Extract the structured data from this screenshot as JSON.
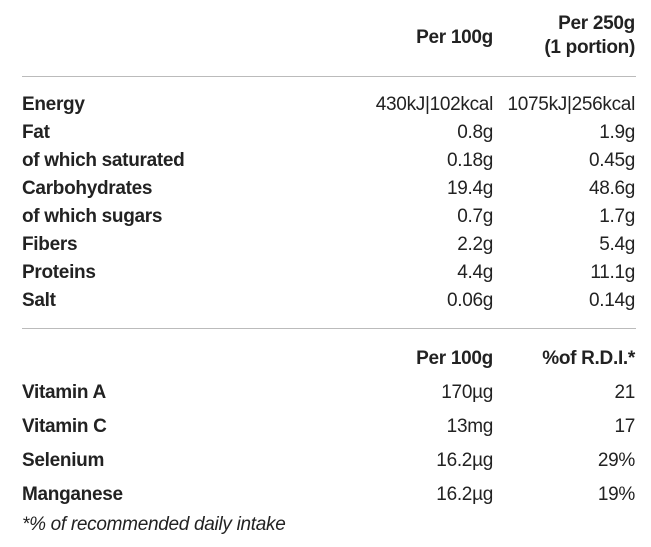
{
  "nutrition": {
    "header": {
      "per_100g": "Per 100g",
      "per_portion": [
        "Per 250g",
        "(1 portion)"
      ]
    },
    "rows": [
      [
        "Energy",
        "430kJ|102kcal",
        "1075kJ|256kcal"
      ],
      [
        "Fat",
        "0.8g",
        "1.9g"
      ],
      [
        "of which saturated",
        "0.18g",
        "0.45g"
      ],
      [
        "Carbohydrates",
        "19.4g",
        "48.6g"
      ],
      [
        "of which sugars",
        "0.7g",
        "1.7g"
      ],
      [
        "Fibers",
        "2.2g",
        "5.4g"
      ],
      [
        "Proteins",
        "4.4g",
        "11.1g"
      ],
      [
        "Salt",
        "0.06g",
        "0.14g"
      ]
    ]
  },
  "vitamins": {
    "header": {
      "per_100g": "Per 100g",
      "rdi": "%of R.D.I.*"
    },
    "rows": [
      [
        "Vitamin A",
        "170µg",
        "21"
      ],
      [
        "Vitamin C",
        "13mg",
        "17"
      ],
      [
        "Selenium",
        "16.2µg",
        "29%"
      ],
      [
        "Manganese",
        "16.2µg",
        "19%"
      ]
    ]
  },
  "footnote": "*% of recommended daily intake"
}
